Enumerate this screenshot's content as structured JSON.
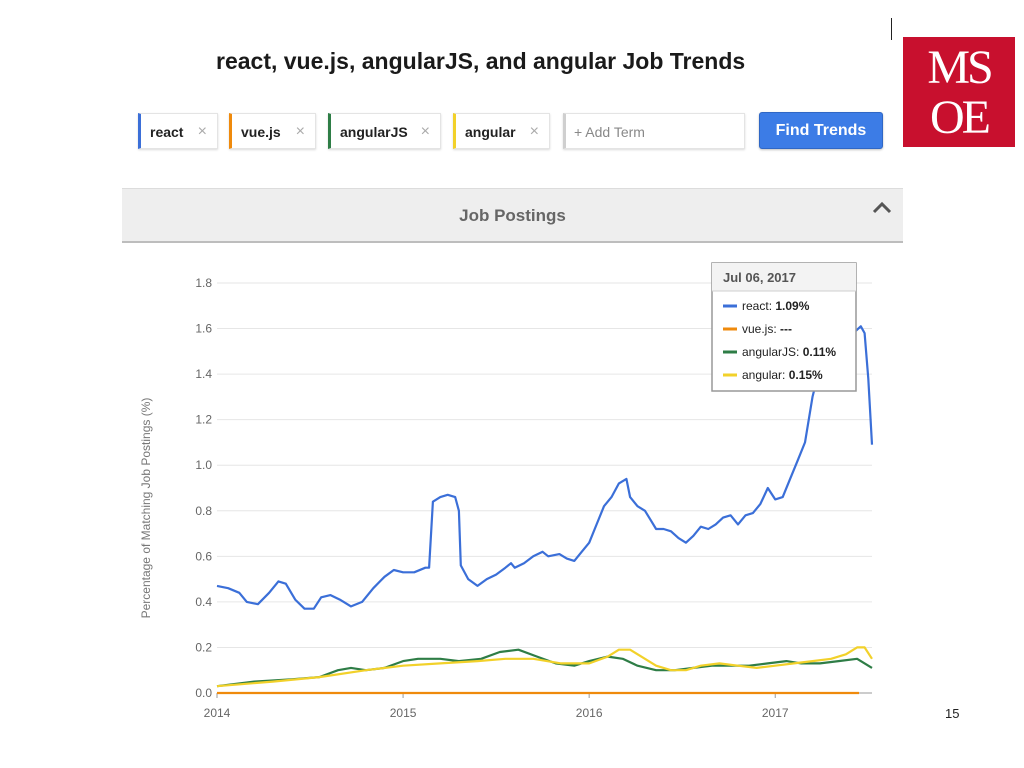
{
  "slide": {
    "title": "react, vue.js, angularJS, and angular Job Trends",
    "page_number": "15"
  },
  "logo": {
    "line1": "MS",
    "line2": "OE"
  },
  "terms": [
    {
      "label": "react",
      "remove": "×",
      "color": "#3b6fd8"
    },
    {
      "label": "vue.js",
      "remove": "×",
      "color": "#ef8a0c"
    },
    {
      "label": "angularJS",
      "remove": "×",
      "color": "#2e7d46"
    },
    {
      "label": "angular",
      "remove": "×",
      "color": "#f2d12a"
    }
  ],
  "add_term": {
    "placeholder": "+ Add Term"
  },
  "find_button": {
    "label": "Find Trends"
  },
  "panel": {
    "title": "Job Postings",
    "caret_icon": "chevron-up-icon"
  },
  "tooltip": {
    "date": "Jul 06, 2017",
    "rows": [
      {
        "name": "react",
        "value": "1.09%"
      },
      {
        "name": "vue.js",
        "value": "---"
      },
      {
        "name": "angularJS",
        "value": "0.11%"
      },
      {
        "name": "angular",
        "value": "0.15%"
      }
    ]
  },
  "chart_data": {
    "type": "line",
    "ylabel": "Percentage of Matching Job Postings (%)",
    "xlabel": "",
    "xlim": [
      2014.0,
      2017.52
    ],
    "ylim": [
      0,
      1.8
    ],
    "x_ticks": [
      "2014",
      "2015",
      "2016",
      "2017"
    ],
    "y_ticks": [
      "0.0",
      "0.2",
      "0.4",
      "0.6",
      "0.8",
      "1.0",
      "1.2",
      "1.4",
      "1.6",
      "1.8"
    ],
    "grid": true,
    "legend": "tooltip top-right",
    "series": [
      {
        "name": "react",
        "color": "#3b6fd8",
        "points": [
          [
            2014.0,
            0.47
          ],
          [
            2014.06,
            0.46
          ],
          [
            2014.12,
            0.44
          ],
          [
            2014.16,
            0.4
          ],
          [
            2014.22,
            0.39
          ],
          [
            2014.28,
            0.44
          ],
          [
            2014.33,
            0.49
          ],
          [
            2014.37,
            0.48
          ],
          [
            2014.42,
            0.41
          ],
          [
            2014.47,
            0.37
          ],
          [
            2014.52,
            0.37
          ],
          [
            2014.56,
            0.42
          ],
          [
            2014.61,
            0.43
          ],
          [
            2014.66,
            0.41
          ],
          [
            2014.72,
            0.38
          ],
          [
            2014.78,
            0.4
          ],
          [
            2014.84,
            0.46
          ],
          [
            2014.9,
            0.51
          ],
          [
            2014.95,
            0.54
          ],
          [
            2015.0,
            0.53
          ],
          [
            2015.06,
            0.53
          ],
          [
            2015.12,
            0.55
          ],
          [
            2015.14,
            0.55
          ],
          [
            2015.16,
            0.84
          ],
          [
            2015.2,
            0.86
          ],
          [
            2015.24,
            0.87
          ],
          [
            2015.28,
            0.86
          ],
          [
            2015.3,
            0.8
          ],
          [
            2015.31,
            0.56
          ],
          [
            2015.35,
            0.5
          ],
          [
            2015.4,
            0.47
          ],
          [
            2015.45,
            0.5
          ],
          [
            2015.5,
            0.52
          ],
          [
            2015.55,
            0.55
          ],
          [
            2015.58,
            0.57
          ],
          [
            2015.6,
            0.55
          ],
          [
            2015.65,
            0.57
          ],
          [
            2015.7,
            0.6
          ],
          [
            2015.75,
            0.62
          ],
          [
            2015.78,
            0.6
          ],
          [
            2015.84,
            0.61
          ],
          [
            2015.88,
            0.59
          ],
          [
            2015.92,
            0.58
          ],
          [
            2015.96,
            0.62
          ],
          [
            2016.0,
            0.66
          ],
          [
            2016.04,
            0.74
          ],
          [
            2016.08,
            0.82
          ],
          [
            2016.12,
            0.86
          ],
          [
            2016.16,
            0.92
          ],
          [
            2016.2,
            0.94
          ],
          [
            2016.22,
            0.86
          ],
          [
            2016.26,
            0.82
          ],
          [
            2016.3,
            0.8
          ],
          [
            2016.33,
            0.76
          ],
          [
            2016.36,
            0.72
          ],
          [
            2016.4,
            0.72
          ],
          [
            2016.44,
            0.71
          ],
          [
            2016.48,
            0.68
          ],
          [
            2016.52,
            0.66
          ],
          [
            2016.56,
            0.69
          ],
          [
            2016.6,
            0.73
          ],
          [
            2016.64,
            0.72
          ],
          [
            2016.68,
            0.74
          ],
          [
            2016.72,
            0.77
          ],
          [
            2016.76,
            0.78
          ],
          [
            2016.8,
            0.74
          ],
          [
            2016.84,
            0.78
          ],
          [
            2016.88,
            0.79
          ],
          [
            2016.92,
            0.83
          ],
          [
            2016.96,
            0.9
          ],
          [
            2017.0,
            0.85
          ],
          [
            2017.04,
            0.86
          ],
          [
            2017.08,
            0.94
          ],
          [
            2017.12,
            1.02
          ],
          [
            2017.16,
            1.1
          ],
          [
            2017.2,
            1.3
          ],
          [
            2017.24,
            1.43
          ],
          [
            2017.3,
            1.5
          ],
          [
            2017.36,
            1.55
          ],
          [
            2017.42,
            1.58
          ],
          [
            2017.46,
            1.61
          ],
          [
            2017.48,
            1.58
          ],
          [
            2017.5,
            1.38
          ],
          [
            2017.52,
            1.09
          ]
        ]
      },
      {
        "name": "vue.js",
        "color": "#ef8a0c",
        "points": [
          [
            2014.0,
            0.0
          ],
          [
            2014.5,
            0.0
          ],
          [
            2015.0,
            0.0
          ],
          [
            2015.5,
            0.0
          ],
          [
            2016.0,
            0.0
          ],
          [
            2016.5,
            0.0
          ],
          [
            2017.0,
            0.0
          ],
          [
            2017.45,
            0.0
          ]
        ]
      },
      {
        "name": "angularJS",
        "color": "#2e7d46",
        "points": [
          [
            2014.0,
            0.03
          ],
          [
            2014.2,
            0.05
          ],
          [
            2014.4,
            0.06
          ],
          [
            2014.55,
            0.07
          ],
          [
            2014.65,
            0.1
          ],
          [
            2014.72,
            0.11
          ],
          [
            2014.8,
            0.1
          ],
          [
            2014.9,
            0.11
          ],
          [
            2015.0,
            0.14
          ],
          [
            2015.08,
            0.15
          ],
          [
            2015.2,
            0.15
          ],
          [
            2015.3,
            0.14
          ],
          [
            2015.42,
            0.15
          ],
          [
            2015.52,
            0.18
          ],
          [
            2015.62,
            0.19
          ],
          [
            2015.72,
            0.16
          ],
          [
            2015.82,
            0.13
          ],
          [
            2015.92,
            0.12
          ],
          [
            2016.0,
            0.14
          ],
          [
            2016.1,
            0.16
          ],
          [
            2016.18,
            0.15
          ],
          [
            2016.26,
            0.12
          ],
          [
            2016.36,
            0.1
          ],
          [
            2016.46,
            0.1
          ],
          [
            2016.56,
            0.11
          ],
          [
            2016.66,
            0.12
          ],
          [
            2016.76,
            0.12
          ],
          [
            2016.86,
            0.12
          ],
          [
            2016.96,
            0.13
          ],
          [
            2017.06,
            0.14
          ],
          [
            2017.14,
            0.13
          ],
          [
            2017.24,
            0.13
          ],
          [
            2017.34,
            0.14
          ],
          [
            2017.44,
            0.15
          ],
          [
            2017.52,
            0.11
          ]
        ]
      },
      {
        "name": "angular",
        "color": "#f2d12a",
        "points": [
          [
            2014.0,
            0.03
          ],
          [
            2014.3,
            0.05
          ],
          [
            2014.55,
            0.07
          ],
          [
            2014.8,
            0.1
          ],
          [
            2015.0,
            0.12
          ],
          [
            2015.2,
            0.13
          ],
          [
            2015.4,
            0.14
          ],
          [
            2015.55,
            0.15
          ],
          [
            2015.7,
            0.15
          ],
          [
            2015.85,
            0.13
          ],
          [
            2016.0,
            0.13
          ],
          [
            2016.1,
            0.16
          ],
          [
            2016.16,
            0.19
          ],
          [
            2016.22,
            0.19
          ],
          [
            2016.28,
            0.16
          ],
          [
            2016.36,
            0.12
          ],
          [
            2016.44,
            0.1
          ],
          [
            2016.52,
            0.1
          ],
          [
            2016.6,
            0.12
          ],
          [
            2016.7,
            0.13
          ],
          [
            2016.8,
            0.12
          ],
          [
            2016.9,
            0.11
          ],
          [
            2017.0,
            0.12
          ],
          [
            2017.1,
            0.13
          ],
          [
            2017.2,
            0.14
          ],
          [
            2017.3,
            0.15
          ],
          [
            2017.38,
            0.17
          ],
          [
            2017.44,
            0.2
          ],
          [
            2017.48,
            0.2
          ],
          [
            2017.52,
            0.15
          ]
        ]
      }
    ]
  }
}
